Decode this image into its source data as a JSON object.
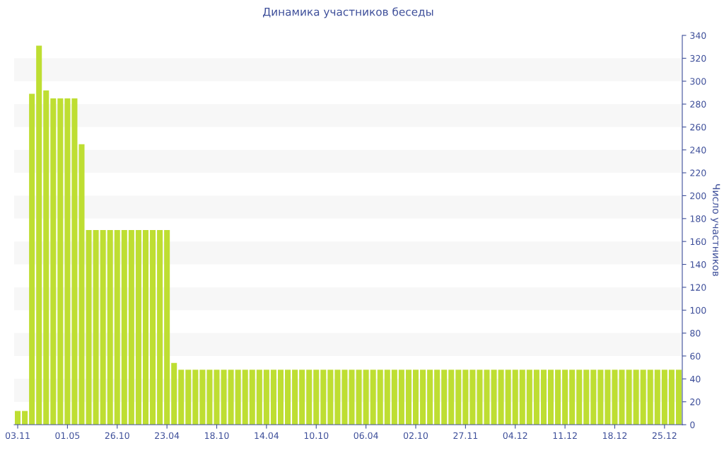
{
  "chart_data": {
    "type": "bar",
    "title": "Динамика участников беседы",
    "ylabel": "Число участников",
    "categories": [
      "03.11",
      null,
      null,
      null,
      null,
      null,
      null,
      "01.05",
      null,
      null,
      null,
      null,
      null,
      null,
      "26.10",
      null,
      null,
      null,
      null,
      null,
      null,
      "23.04",
      null,
      null,
      null,
      null,
      null,
      null,
      "18.10",
      null,
      null,
      null,
      null,
      null,
      null,
      "14.04",
      null,
      null,
      null,
      null,
      null,
      null,
      "10.10",
      null,
      null,
      null,
      null,
      null,
      null,
      "06.04",
      null,
      null,
      null,
      null,
      null,
      null,
      "02.10",
      null,
      null,
      null,
      null,
      null,
      null,
      "27.11",
      null,
      null,
      null,
      null,
      null,
      null,
      "04.12",
      null,
      null,
      null,
      null,
      null,
      null,
      "11.12",
      null,
      null,
      null,
      null,
      null,
      null,
      "18.12",
      null,
      null,
      null,
      null,
      null,
      null,
      "25.12",
      null,
      null
    ],
    "values": [
      12,
      12,
      289,
      331,
      292,
      285,
      285,
      285,
      285,
      245,
      170,
      170,
      170,
      170,
      170,
      170,
      170,
      170,
      170,
      170,
      170,
      170,
      54,
      48,
      48,
      48,
      48,
      48,
      48,
      48,
      48,
      48,
      48,
      48,
      48,
      48,
      48,
      48,
      48,
      48,
      48,
      48,
      48,
      48,
      48,
      48,
      48,
      48,
      48,
      48,
      48,
      48,
      48,
      48,
      48,
      48,
      48,
      48,
      48,
      48,
      48,
      48,
      48,
      48,
      48,
      48,
      48,
      48,
      48,
      48,
      48,
      48,
      48,
      48,
      48,
      48,
      48,
      48,
      48,
      48,
      48,
      48,
      48,
      48,
      48,
      48,
      48,
      48,
      48,
      48,
      48,
      48,
      48,
      48
    ],
    "color": "#bede32",
    "ylim": [
      0,
      340
    ],
    "yticks": [
      0,
      20,
      40,
      60,
      80,
      100,
      120,
      140,
      160,
      180,
      200,
      220,
      240,
      260,
      280,
      300,
      320,
      340
    ],
    "bands": [
      {
        "axis": "y",
        "from": 20,
        "to": 40,
        "color": "#f7f7f7"
      },
      {
        "axis": "y",
        "from": 60,
        "to": 80,
        "color": "#f7f7f7"
      },
      {
        "axis": "y",
        "from": 100,
        "to": 120,
        "color": "#f7f7f7"
      },
      {
        "axis": "y",
        "from": 140,
        "to": 160,
        "color": "#f7f7f7"
      },
      {
        "axis": "y",
        "from": 180,
        "to": 200,
        "color": "#f7f7f7"
      },
      {
        "axis": "y",
        "from": 220,
        "to": 240,
        "color": "#f7f7f7"
      },
      {
        "axis": "y",
        "from": 260,
        "to": 280,
        "color": "#f7f7f7"
      },
      {
        "axis": "y",
        "from": 300,
        "to": 320,
        "color": "#f7f7f7"
      }
    ],
    "legend": false
  }
}
